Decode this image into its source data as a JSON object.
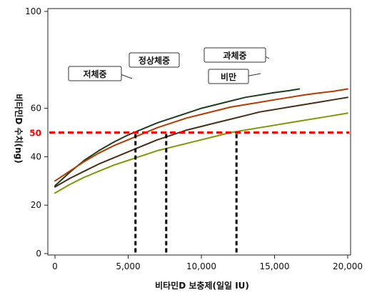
{
  "chart_data": {
    "type": "line",
    "xlabel": "비타민D 보충제(일일 IU)",
    "ylabel": "비타민D 수치(ng)",
    "xlim": [
      0,
      20000
    ],
    "ylim": [
      0,
      100
    ],
    "x_ticks": [
      0,
      5000,
      10000,
      15000,
      20000
    ],
    "x_tick_labels": [
      "0",
      "5,000",
      "10,000",
      "15,000",
      "20,000"
    ],
    "y_ticks": [
      0,
      20,
      40,
      60,
      100
    ],
    "y_tick_labels": [
      "0",
      "20",
      "40",
      "60",
      "100"
    ],
    "grid": false,
    "reference_line": {
      "y": 50,
      "label": "50",
      "color": "#ff0000"
    },
    "drop_lines_x": [
      5500,
      7600,
      12400
    ],
    "series": [
      {
        "name": "저체중",
        "color": "#1f3d1f",
        "x": [
          0,
          1000,
          2000,
          3000,
          4000,
          5000,
          6000,
          7000,
          8000,
          9000,
          10000,
          11000,
          12000,
          13000,
          14000,
          15000,
          16000,
          16700
        ],
        "y": [
          28,
          33.5,
          38.5,
          42.5,
          46,
          49,
          51.5,
          54,
          56,
          58,
          60,
          61.5,
          63,
          64.5,
          65.5,
          66.5,
          67.3,
          68
        ]
      },
      {
        "name": "정상체중",
        "color": "#b83a00",
        "x": [
          0,
          1000,
          2000,
          3000,
          4000,
          5000,
          6000,
          7000,
          8000,
          9000,
          10000,
          11000,
          12000,
          13000,
          14000,
          15000,
          16000,
          17000,
          18000,
          19000,
          20000
        ],
        "y": [
          30,
          34,
          38,
          41.5,
          44.5,
          47,
          49.5,
          52,
          54,
          56,
          57.5,
          59,
          60.5,
          61.5,
          62.5,
          63.5,
          64.5,
          65.5,
          66.3,
          67,
          68
        ]
      },
      {
        "name": "과체중",
        "color": "#4a2d14",
        "x": [
          0,
          1000,
          2000,
          3000,
          4000,
          5000,
          6000,
          7000,
          8000,
          9000,
          10000,
          11000,
          12000,
          13000,
          14000,
          15000,
          16000,
          17000,
          18000,
          19000,
          20000
        ],
        "y": [
          27.5,
          31,
          34,
          37,
          39.5,
          42,
          44.5,
          47,
          49,
          51,
          52.5,
          54,
          55.5,
          57,
          58.5,
          59.5,
          60.5,
          61.5,
          62.5,
          63.5,
          64.5
        ]
      },
      {
        "name": "비만",
        "color": "#7f9a00",
        "x": [
          0,
          1000,
          2000,
          3000,
          4000,
          5000,
          6000,
          7000,
          8000,
          9000,
          10000,
          11000,
          12000,
          13000,
          14000,
          15000,
          16000,
          17000,
          18000,
          19000,
          20000
        ],
        "y": [
          25,
          28.5,
          31.5,
          34,
          36.5,
          38.5,
          40.5,
          42.5,
          44,
          45.5,
          47,
          48.5,
          50,
          51,
          52,
          53,
          54,
          55,
          56,
          57,
          58
        ]
      }
    ]
  }
}
